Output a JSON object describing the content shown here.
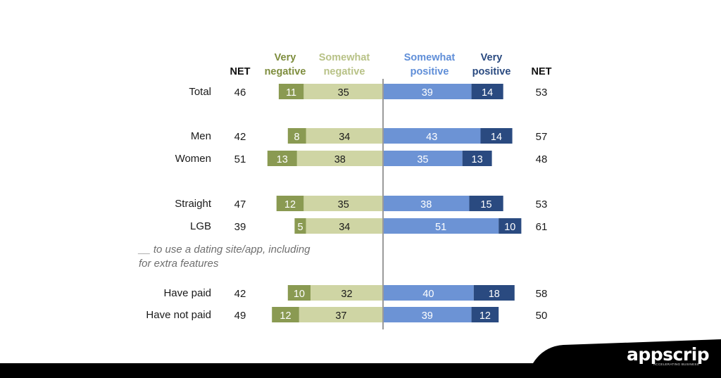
{
  "chart_data": {
    "type": "bar",
    "subtype": "diverging-stacked",
    "headers": {
      "net_left": "NET",
      "very_negative": [
        "Very",
        "negative"
      ],
      "somewhat_negative": [
        "Somewhat",
        "negative"
      ],
      "somewhat_positive": [
        "Somewhat",
        "positive"
      ],
      "very_positive": [
        "Very",
        "positive"
      ],
      "net_right": "NET"
    },
    "series": [
      {
        "name": "Very negative",
        "color": "#8a9a52"
      },
      {
        "name": "Somewhat negative",
        "color": "#cfd5a4"
      },
      {
        "name": "Somewhat positive",
        "color": "#6c93d5"
      },
      {
        "name": "Very positive",
        "color": "#2a4a80"
      }
    ],
    "header_colors": {
      "net": "#111111",
      "very_negative": "#7e8d3d",
      "somewhat_negative": "#b8c287",
      "somewhat_positive": "#5f8ed8",
      "very_positive": "#2a4a80"
    },
    "rows": [
      {
        "label": "Total",
        "net_neg": 46,
        "very_neg": 11,
        "somewhat_neg": 35,
        "somewhat_pos": 39,
        "very_pos": 14,
        "net_pos": 53
      },
      {
        "label": "Men",
        "net_neg": 42,
        "very_neg": 8,
        "somewhat_neg": 34,
        "somewhat_pos": 43,
        "very_pos": 14,
        "net_pos": 57
      },
      {
        "label": "Women",
        "net_neg": 51,
        "very_neg": 13,
        "somewhat_neg": 38,
        "somewhat_pos": 35,
        "very_pos": 13,
        "net_pos": 48
      },
      {
        "label": "Straight",
        "net_neg": 47,
        "very_neg": 12,
        "somewhat_neg": 35,
        "somewhat_pos": 38,
        "very_pos": 15,
        "net_pos": 53
      },
      {
        "label": "LGB",
        "net_neg": 39,
        "very_neg": 5,
        "somewhat_neg": 34,
        "somewhat_pos": 51,
        "very_pos": 10,
        "net_pos": 61
      },
      {
        "label": "Have paid",
        "net_neg": 42,
        "very_neg": 10,
        "somewhat_neg": 32,
        "somewhat_pos": 40,
        "very_pos": 18,
        "net_pos": 58
      },
      {
        "label": "Have not paid",
        "net_neg": 49,
        "very_neg": 12,
        "somewhat_neg": 37,
        "somewhat_pos": 39,
        "very_pos": 12,
        "net_pos": 50
      }
    ],
    "subgroup_note": [
      "__ to use a dating site/app, including",
      "for extra features"
    ]
  },
  "brand": {
    "name": "appscrip",
    "tagline": "ACCELERATING BUSINESS"
  }
}
